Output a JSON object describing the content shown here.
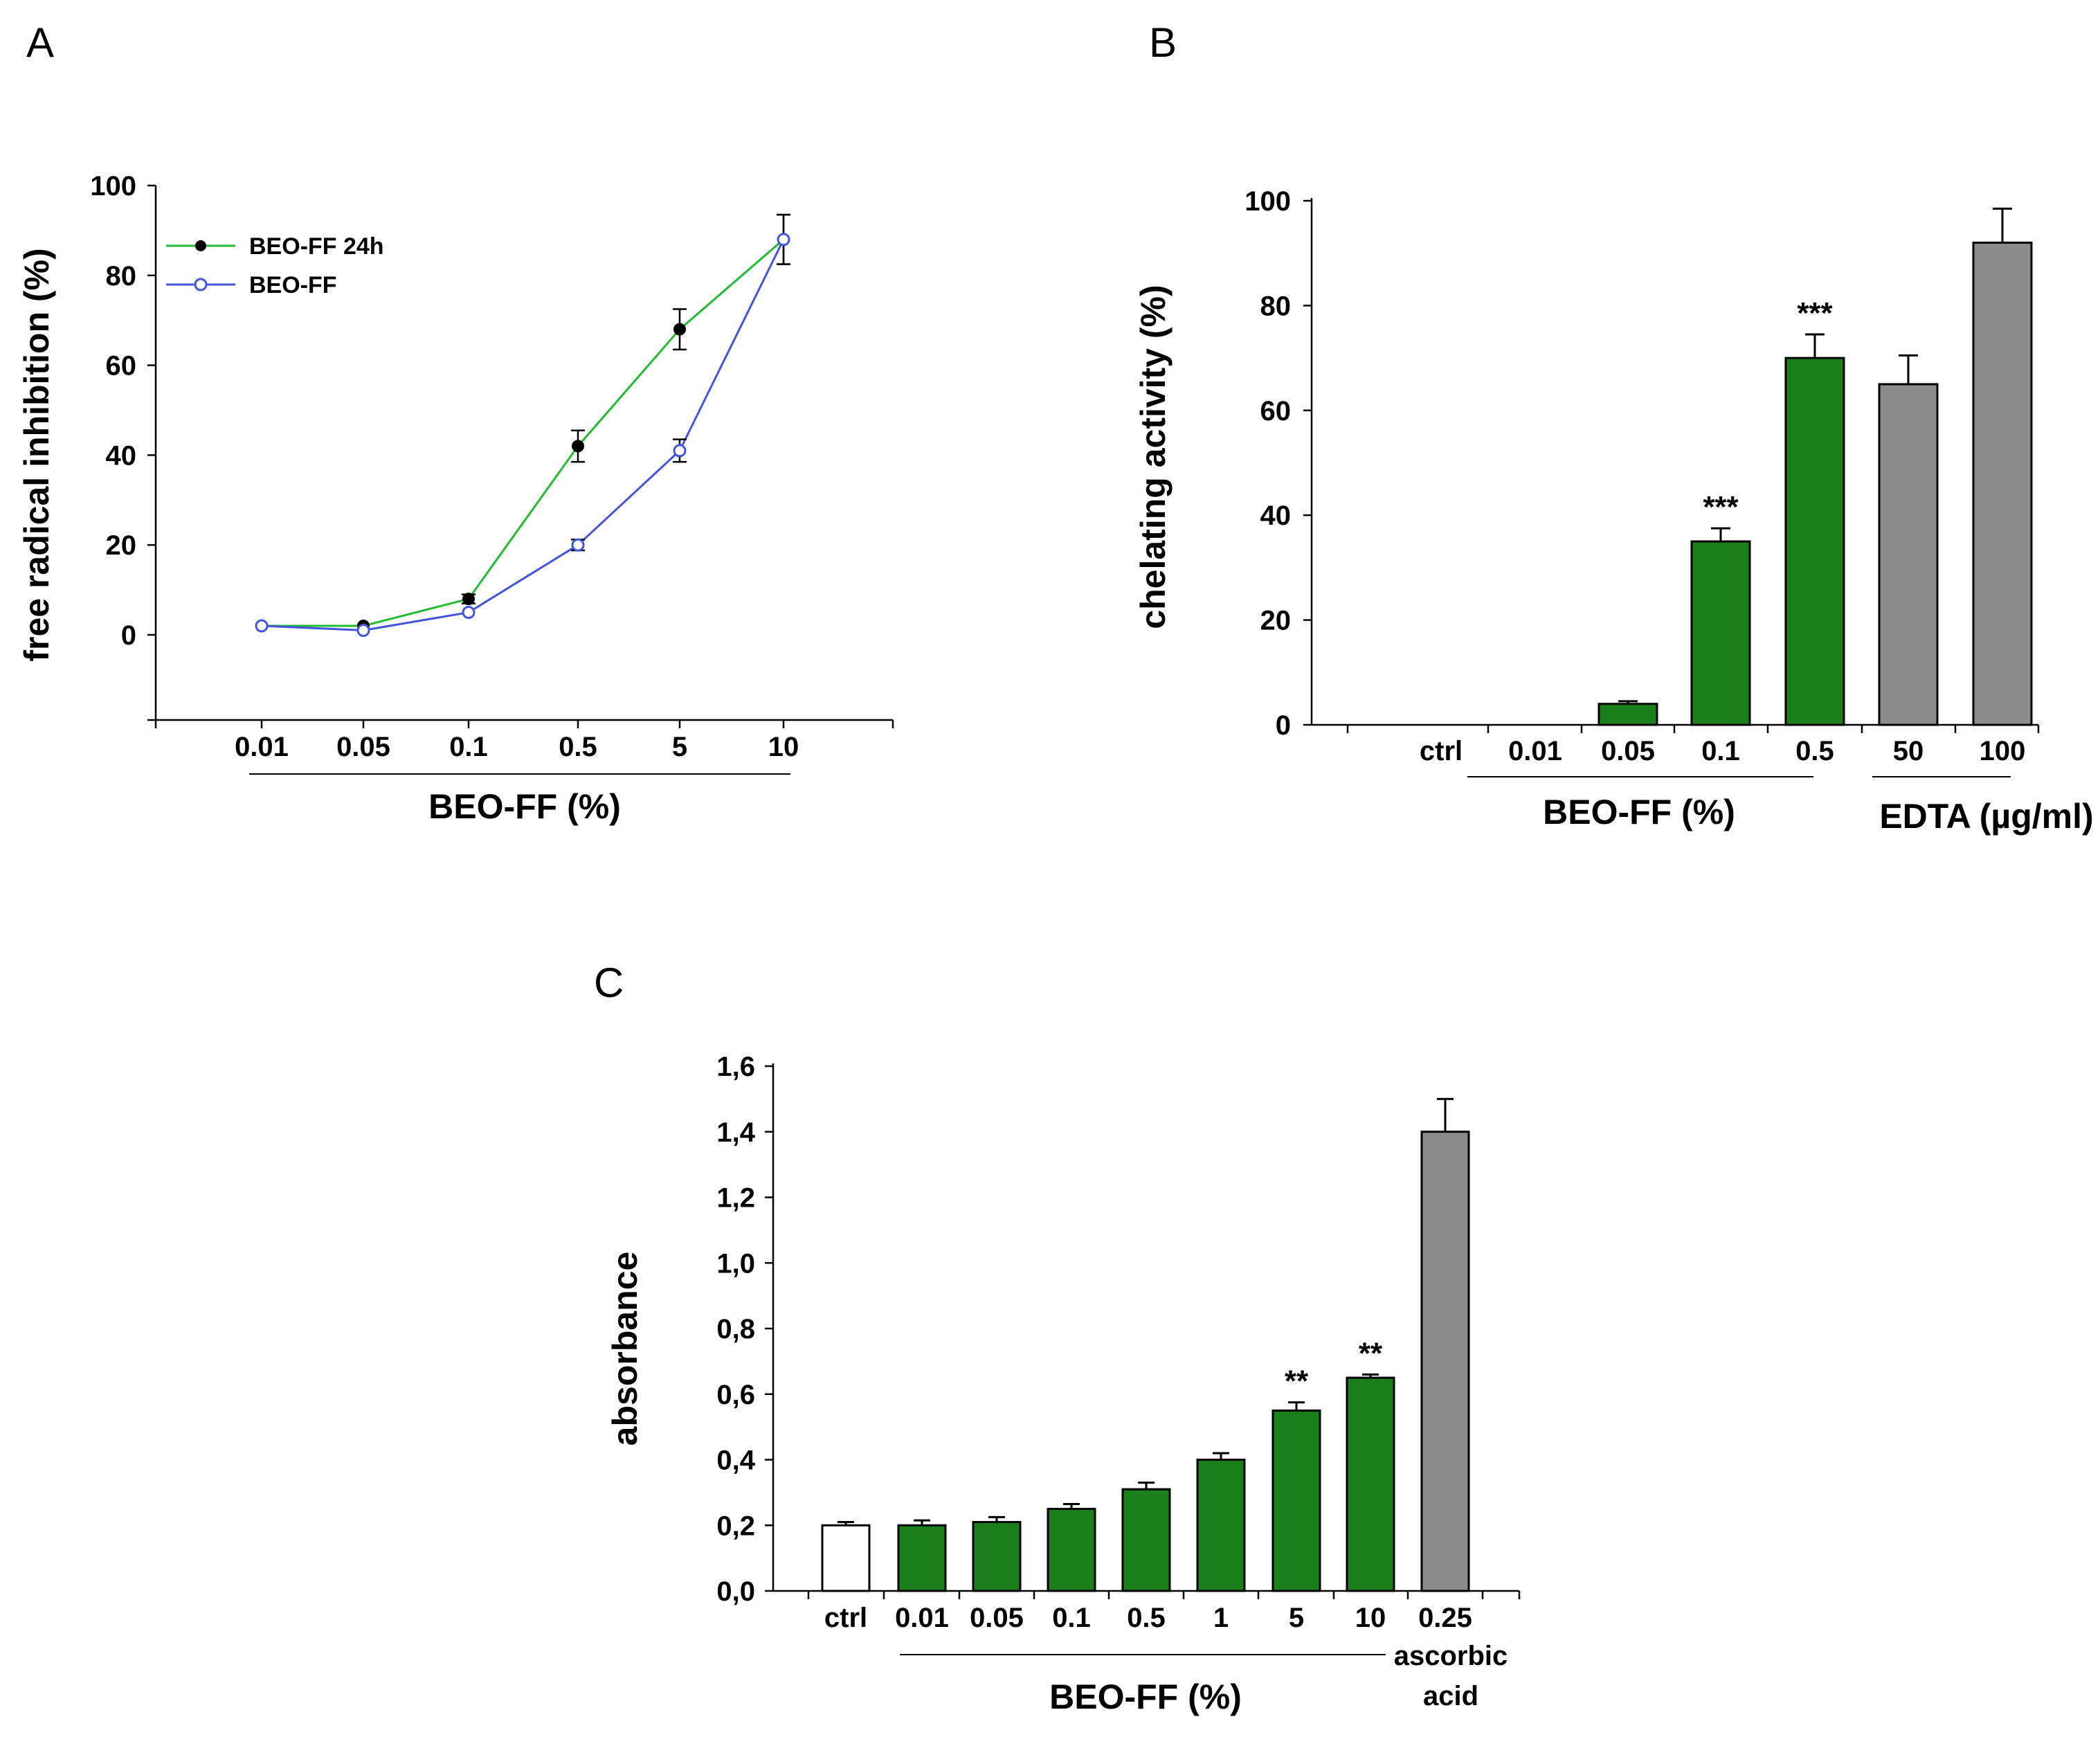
{
  "chart_data": [
    {
      "panel": "A",
      "type": "line",
      "x": [
        "0.01",
        "0.05",
        "0.1",
        "0.5",
        "5",
        "10"
      ],
      "xlabel": "BEO-FF (%)",
      "ylabel": "free radical inhibition (%)",
      "ylim": [
        -20,
        100
      ],
      "yticks": [
        "0",
        "20",
        "40",
        "60",
        "80",
        "100"
      ],
      "series": [
        {
          "name": "BEO-FF 24h",
          "values": [
            2,
            2,
            8,
            42,
            68,
            88
          ],
          "errors": [
            0.5,
            0.5,
            1,
            3.5,
            4.5,
            5.5
          ],
          "color": "#22bb33",
          "marker": "filled-circle"
        },
        {
          "name": "BEO-FF",
          "values": [
            2,
            1,
            5,
            20,
            41,
            88
          ],
          "errors": [
            0.5,
            0.5,
            0.8,
            1.2,
            2.5,
            5.5
          ],
          "color": "#4455dd",
          "marker": "open-circle"
        }
      ]
    },
    {
      "panel": "B",
      "type": "bar",
      "categories": [
        "ctrl",
        "0.01",
        "0.05",
        "0.1",
        "0.5",
        "50",
        "100"
      ],
      "values": [
        0,
        0,
        4,
        35,
        70,
        65,
        92
      ],
      "errors": [
        0,
        0,
        0.5,
        2.5,
        4.5,
        5.5,
        6.5
      ],
      "colors": [
        "#1b7f1b",
        "#1b7f1b",
        "#1b7f1b",
        "#1b7f1b",
        "#1b7f1b",
        "#8c8c8c",
        "#8c8c8c"
      ],
      "annotations": [
        "",
        "",
        "",
        "***",
        "***",
        "",
        ""
      ],
      "group_labels": [
        "BEO-FF (%)",
        "EDTA (µg/ml)"
      ],
      "ylabel": "chelating activity (%)",
      "ylim": [
        0,
        100
      ],
      "yticks": [
        "0",
        "20",
        "40",
        "60",
        "80",
        "100"
      ]
    },
    {
      "panel": "C",
      "type": "bar",
      "categories": [
        "ctrl",
        "0.01",
        "0.05",
        "0.1",
        "0.5",
        "1",
        "5",
        "10",
        "0.25"
      ],
      "values": [
        0.2,
        0.2,
        0.21,
        0.25,
        0.31,
        0.4,
        0.55,
        0.65,
        1.4
      ],
      "errors": [
        0.01,
        0.015,
        0.015,
        0.015,
        0.02,
        0.02,
        0.025,
        0.01,
        0.1
      ],
      "colors": [
        "#ffffff",
        "#1b7f1b",
        "#1b7f1b",
        "#1b7f1b",
        "#1b7f1b",
        "#1b7f1b",
        "#1b7f1b",
        "#1b7f1b",
        "#8c8c8c"
      ],
      "annotations": [
        "",
        "",
        "",
        "",
        "",
        "",
        "**",
        "**",
        ""
      ],
      "group_labels": [
        "BEO-FF (%)"
      ],
      "extra_label": [
        "ascorbic",
        "acid"
      ],
      "ylabel": "absorbance",
      "ylim": [
        0,
        1.6
      ],
      "yticks": [
        "0,0",
        "0,2",
        "0,4",
        "0,6",
        "0,8",
        "1,0",
        "1,2",
        "1,4",
        "1,6"
      ]
    }
  ],
  "panel_letters": [
    "A",
    "B",
    "C"
  ]
}
